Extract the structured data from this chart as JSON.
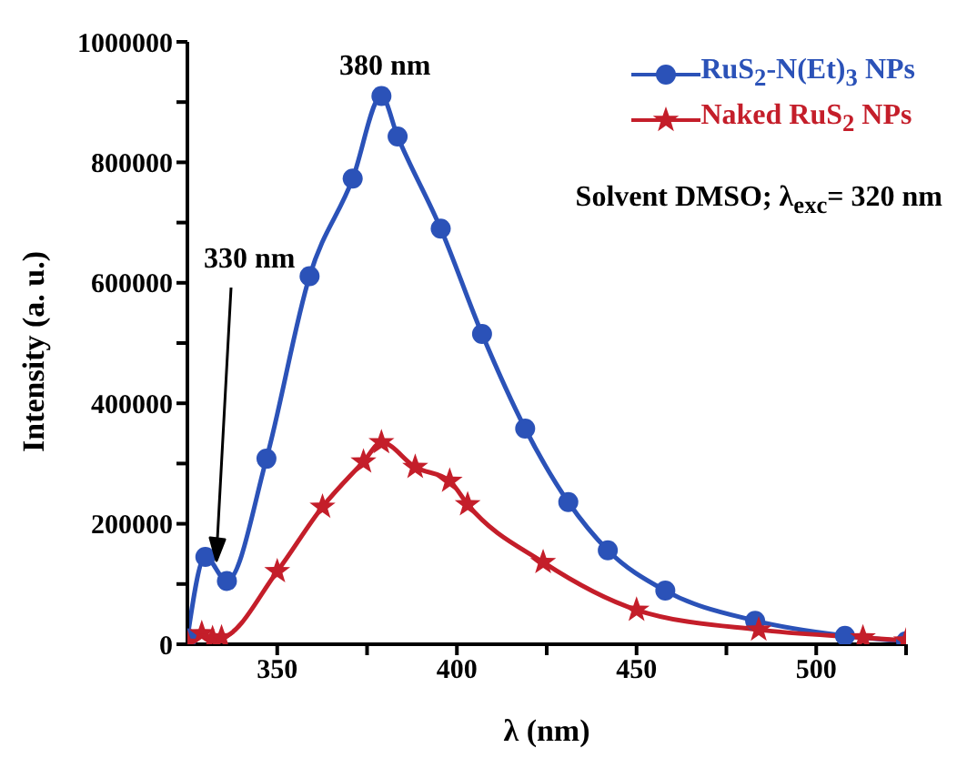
{
  "chart_data": {
    "type": "line",
    "xlabel": "λ (nm)",
    "ylabel": "Intensity (a. u.)",
    "xlim": [
      325,
      525
    ],
    "xticks": [
      350,
      {
        "value": 375,
        "label": null
      },
      400,
      {
        "value": 425,
        "label": null
      },
      450,
      {
        "value": 475,
        "label": null
      },
      500,
      {
        "value": 525,
        "label": null
      }
    ],
    "ylim": [
      0,
      1000000
    ],
    "yticks": [
      0,
      {
        "value": 100000,
        "label": null
      },
      200000,
      {
        "value": 300000,
        "label": null
      },
      400000,
      {
        "value": 500000,
        "label": null
      },
      600000,
      {
        "value": 700000,
        "label": null
      },
      800000,
      {
        "value": 900000,
        "label": null
      },
      1000000
    ],
    "legend": "top right",
    "line_style": "solid",
    "series": [
      {
        "name": "RuS$_{2}$-N(Et)$_{3}$ NPs",
        "color": "#2b52b8",
        "marker": "circle",
        "x": [
          325,
          330,
          336,
          347,
          359,
          371,
          379,
          383.5,
          395.5,
          407,
          419,
          431,
          442,
          458,
          483,
          508,
          525
        ],
        "values": [
          10000,
          145000,
          105000,
          308000,
          611000,
          773000,
          910000,
          843000,
          690000,
          515000,
          358000,
          236000,
          156000,
          89000,
          39000,
          14000,
          5000
        ]
      },
      {
        "name": "Naked RuS$_{2}$ NPs",
        "color": "#c41e2a",
        "marker": "star",
        "x": [
          325,
          329,
          332,
          334.5,
          350,
          362.6,
          374,
          379,
          388.4,
          398,
          403,
          424,
          450,
          484,
          513,
          525
        ],
        "values": [
          2000,
          18000,
          10000,
          11000,
          121000,
          228000,
          303000,
          335000,
          294000,
          271000,
          232000,
          136000,
          57000,
          24000,
          11000,
          6000
        ]
      }
    ],
    "annotations": [
      {
        "text": "380 nm",
        "x": 380,
        "y": 910000
      },
      "330 nm",
      "Solvent DMSO; λ$_{exc}$= 320 nm"
    ]
  }
}
